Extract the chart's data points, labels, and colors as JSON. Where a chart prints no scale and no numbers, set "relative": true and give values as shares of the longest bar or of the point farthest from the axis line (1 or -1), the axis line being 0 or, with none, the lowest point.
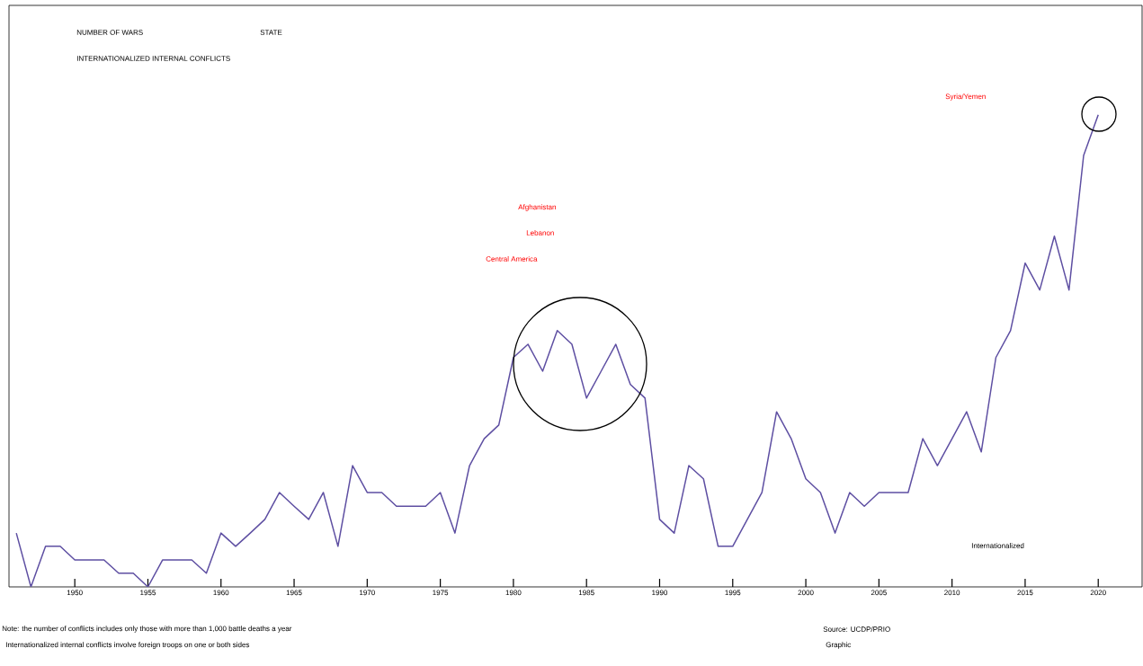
{
  "chart_data": {
    "type": "line",
    "relative": true,
    "tick_labels": "x",
    "title": "NUMBER OF WARS",
    "subtitle": "INTERNATIONALIZED INTERNAL CONFLICTS",
    "x": [
      1946,
      1947,
      1948,
      1949,
      1950,
      1951,
      1952,
      1953,
      1954,
      1955,
      1956,
      1957,
      1958,
      1959,
      1960,
      1961,
      1962,
      1963,
      1964,
      1965,
      1966,
      1967,
      1968,
      1969,
      1970,
      1971,
      1972,
      1973,
      1974,
      1975,
      1976,
      1977,
      1978,
      1979,
      1980,
      1981,
      1982,
      1983,
      1984,
      1985,
      1986,
      1987,
      1988,
      1989,
      1990,
      1991,
      1992,
      1993,
      1994,
      1995,
      1996,
      1997,
      1998,
      1999,
      2000,
      2001,
      2002,
      2003,
      2004,
      2005,
      2006,
      2007,
      2008,
      2009,
      2010,
      2011,
      2012,
      2013,
      2014,
      2015,
      2016,
      2017,
      2018,
      2019,
      2020
    ],
    "series": [
      {
        "color": "#5e4fa2",
        "values": [
          0.114,
          0,
          0.086,
          0.086,
          0.057,
          0.057,
          0.057,
          0.029,
          0.029,
          0,
          0.057,
          0.057,
          0.057,
          0.029,
          0.114,
          0.086,
          0.114,
          0.143,
          0.2,
          0.171,
          0.143,
          0.2,
          0.086,
          0.257,
          0.2,
          0.2,
          0.171,
          0.171,
          0.171,
          0.2,
          0.114,
          0.257,
          0.314,
          0.343,
          0.486,
          0.514,
          0.457,
          0.543,
          0.514,
          0.4,
          0.457,
          0.514,
          0.429,
          0.4,
          0.143,
          0.114,
          0.257,
          0.229,
          0.086,
          0.086,
          0.143,
          0.2,
          0.371,
          0.314,
          0.229,
          0.2,
          0.114,
          0.2,
          0.171,
          0.2,
          0.2,
          0.2,
          0.314,
          0.257,
          0.314,
          0.371,
          0.286,
          0.486,
          0.543,
          0.686,
          0.629,
          0.743,
          0.629,
          0.914,
          1
        ]
      }
    ],
    "xlim": [
      1945.5,
      2023
    ],
    "xticks": [
      1950,
      1955,
      1960,
      1965,
      1970,
      1975,
      1980,
      1985,
      1990,
      1995,
      2000,
      2005,
      2010,
      2015,
      2020
    ],
    "grid": false,
    "marker": "none",
    "line_style": "solid",
    "annotations": [
      "STATE",
      "Afghanistan",
      "Lebanon",
      "Central America",
      "Syria/Yemen",
      "Internationalized",
      "Note: the number of conflicts includes only those with more than 1,000 battle deaths a year",
      "Internationalized internal conflicts involve foreign troops on one or both sides",
      "Source: UCDP/PRIO",
      "Graphic"
    ]
  }
}
